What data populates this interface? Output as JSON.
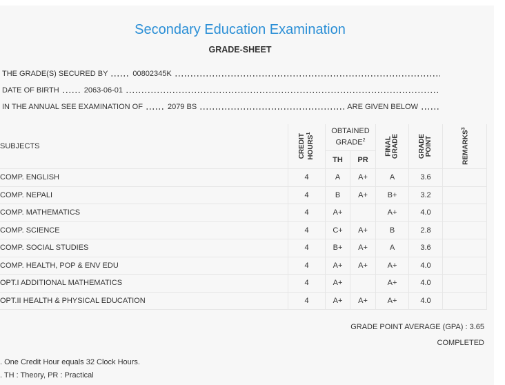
{
  "header": {
    "title": "Secondary Education Examination",
    "subtitle": "GRADE-SHEET"
  },
  "info": [
    {
      "label": "THE GRADE(S) SECURED BY",
      "value": "00802345K"
    },
    {
      "label": "DATE OF BIRTH",
      "value": "2063-06-01"
    },
    {
      "label": "IN THE ANNUAL SEE EXAMINATION OF",
      "value": "2079 BS",
      "suffix": "ARE GIVEN BELOW"
    }
  ],
  "table": {
    "headers": {
      "subjects": "SUBJECTS",
      "credit": "CREDIT HOURS",
      "credit_note": "1",
      "obtained": "OBTAINED GRADE",
      "obtained_note": "2",
      "th": "TH",
      "pr": "PR",
      "final": "FINAL GRADE",
      "point": "GRADE POINT",
      "remarks": "REMARKS",
      "remarks_note": "3"
    },
    "rows": [
      [
        "COMP. ENGLISH",
        "4",
        "A",
        "A+",
        "A",
        "3.6"
      ],
      [
        "COMP. NEPALI",
        "4",
        "B",
        "A+",
        "B+",
        "3.2"
      ],
      [
        "COMP. MATHEMATICS",
        "4",
        "A+",
        "",
        "A+",
        "4.0"
      ],
      [
        "COMP. SCIENCE",
        "4",
        "C+",
        "A+",
        "B",
        "2.8"
      ],
      [
        "COMP. SOCIAL STUDIES",
        "4",
        "B+",
        "A+",
        "A",
        "3.6"
      ],
      [
        "COMP. HEALTH, POP & ENV EDU",
        "4",
        "A+",
        "A+",
        "A+",
        "4.0"
      ],
      [
        "OPT.I ADDITIONAL MATHEMATICS",
        "4",
        "A+",
        "",
        "A+",
        "4.0"
      ],
      [
        "OPT.II HEALTH & PHYSICAL EDUCATION",
        "4",
        "A+",
        "A+",
        "A+",
        "4.0"
      ]
    ]
  },
  "summary": {
    "gpa": "GRADE POINT AVERAGE (GPA) : 3.65",
    "status": "COMPLETED"
  },
  "notes": [
    ". One Credit Hour equals 32 Clock Hours.",
    ". TH : Theory, PR : Practical"
  ]
}
